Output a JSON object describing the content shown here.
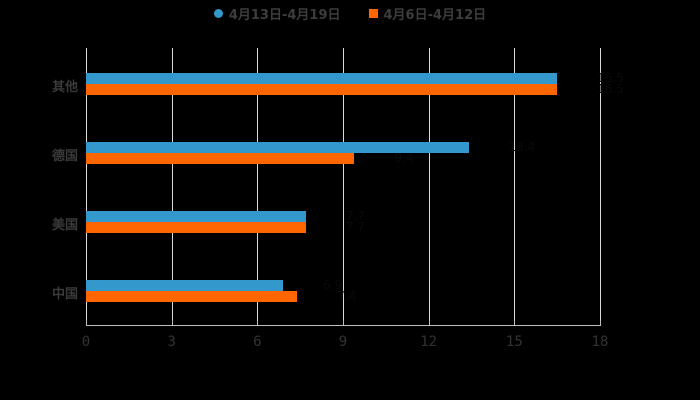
{
  "legend": [
    {
      "label": "4月13日-4月19日",
      "color": "#3399cc",
      "shape": "circle"
    },
    {
      "label": "4月6日-4月12日",
      "color": "#ff6600",
      "shape": "square"
    }
  ],
  "chart_data": {
    "type": "bar",
    "orientation": "horizontal",
    "title": "",
    "xlabel": "",
    "ylabel": "",
    "categories": [
      "其他",
      "德国",
      "美国",
      "中国"
    ],
    "series": [
      {
        "name": "4月13日-4月19日",
        "color": "#3399cc",
        "values": [
          16.5,
          13.4,
          7.7,
          6.9
        ]
      },
      {
        "name": "4月6日-4月12日",
        "color": "#ff6600",
        "values": [
          16.5,
          9.4,
          7.7,
          7.4
        ]
      }
    ],
    "xlim": [
      0,
      18
    ],
    "xticks": [
      "0",
      "3",
      "6",
      "9",
      "12",
      "15",
      "18"
    ],
    "grid": true,
    "legend_position": "top"
  }
}
